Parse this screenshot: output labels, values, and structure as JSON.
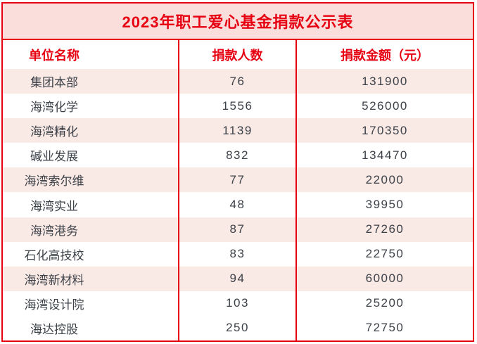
{
  "title": "2023年职工爱心基金捐款公示表",
  "columns": {
    "unit": "单位名称",
    "donors": "捐款人数",
    "amount": "捐款金额（元）"
  },
  "rows": [
    {
      "unit": "集团本部",
      "donors": "76",
      "amount": "131900"
    },
    {
      "unit": "海湾化学",
      "donors": "1556",
      "amount": "526000"
    },
    {
      "unit": "海湾精化",
      "donors": "1139",
      "amount": "170350"
    },
    {
      "unit": "碱业发展",
      "donors": "832",
      "amount": "134470"
    },
    {
      "unit": "海湾索尔维",
      "donors": "77",
      "amount": "22000"
    },
    {
      "unit": "海湾实业",
      "donors": "48",
      "amount": "39950"
    },
    {
      "unit": "海湾港务",
      "donors": "87",
      "amount": "27260"
    },
    {
      "unit": "石化高技校",
      "donors": "83",
      "amount": "22750"
    },
    {
      "unit": "海湾新材料",
      "donors": "94",
      "amount": "60000"
    },
    {
      "unit": "海湾设计院",
      "donors": "103",
      "amount": "25200"
    },
    {
      "unit": "海达控股",
      "donors": "250",
      "amount": "72750"
    }
  ],
  "colors": {
    "accent_red": "#e60012",
    "title_background": "#f9dedb",
    "shaded_row_background": "#faeae6",
    "body_text": "#3c4148"
  }
}
